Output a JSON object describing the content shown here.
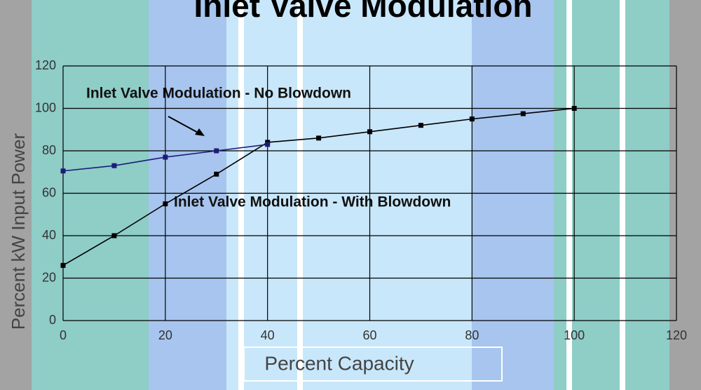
{
  "chart_data": {
    "type": "line",
    "title": "Inlet Valve Modulation",
    "x_label": "Percent Capacity",
    "y_label": "Percent kW Input Power",
    "annotations": [
      "Inlet Valve Modulation - No Blowdown",
      "Inlet Valve Modulation - With Blowdown"
    ],
    "series": [
      {
        "name": "Inlet Valve Modulation - No Blowdown",
        "color": "#1c1c78",
        "x": [
          0,
          10,
          20,
          30,
          40
        ],
        "values": [
          70.5,
          73,
          77,
          80,
          83
        ]
      },
      {
        "name": "Inlet Valve Modulation - With Blowdown",
        "color": "#000000",
        "x": [
          0,
          10,
          20,
          30,
          40,
          50,
          60,
          70,
          80,
          90,
          100
        ],
        "values": [
          26,
          40,
          55,
          69,
          84,
          86,
          89,
          92,
          95,
          97.5,
          100
        ]
      }
    ],
    "xlim": [
      0,
      120
    ],
    "xticks": [
      0,
      20,
      40,
      60,
      80,
      100,
      120
    ],
    "ylim": [
      0,
      120
    ],
    "yticks": [
      0,
      20,
      40,
      60,
      80,
      100,
      120
    ],
    "grid": true
  }
}
